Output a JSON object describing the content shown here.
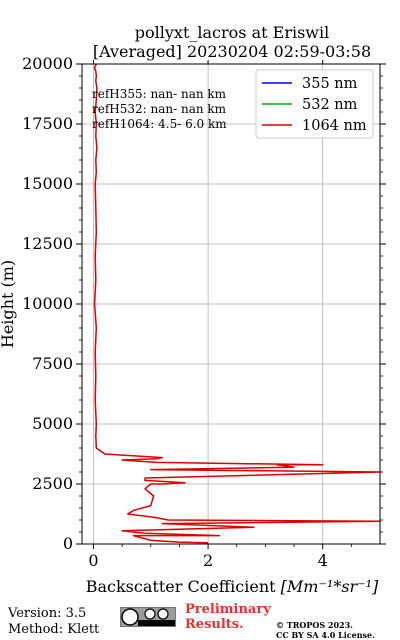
{
  "chart_data": {
    "type": "line",
    "title": "pollyxt_lacros at Eriswil",
    "subtitle": "[Averaged] 20230204 02:59-03:58",
    "xlabel": "Backscatter Coefficient",
    "xlabel_unit": "[Mm⁻¹*sr⁻¹]",
    "ylabel": "Height (m)",
    "xlim": [
      -0.2,
      5
    ],
    "ylim": [
      0,
      20000
    ],
    "xticks": [
      0,
      2,
      4
    ],
    "yticks": [
      0,
      2500,
      5000,
      7500,
      10000,
      12500,
      15000,
      17500,
      20000
    ],
    "grid": true,
    "legend_position": "top-right",
    "annotations": [
      "refH355:  nan- nan km",
      "refH532:  nan- nan km",
      "refH1064:  4.5- 6.0 km"
    ],
    "series": [
      {
        "name": "355 nm",
        "color": "#0000ff",
        "x": [],
        "y": []
      },
      {
        "name": "532 nm",
        "color": "#00aa00",
        "x": [],
        "y": []
      },
      {
        "name": "1064 nm",
        "color": "#dd0000",
        "x": [
          2.0,
          1.5,
          1.0,
          0.7,
          2.2,
          0.9,
          0.5,
          2.8,
          1.2,
          5.0,
          1.3,
          1.1,
          0.6,
          0.7,
          1.0,
          1.05,
          0.9,
          1.0,
          1.2,
          1.6,
          0.9,
          0.9,
          5.0,
          1.0,
          3.5,
          3.2,
          4.0,
          1.1,
          0.5,
          1.1,
          1.2,
          0.2,
          0.05,
          0.04,
          0.05,
          0.03,
          0.04,
          0.03,
          0.05,
          0.02,
          0.04,
          0.03,
          0.05,
          0.04,
          0.03,
          0.05,
          0.04,
          0.06,
          0.04,
          0.05,
          0.03,
          0.05,
          0.06,
          0.04,
          0.05,
          0.04,
          0.02,
          0.05
        ],
        "y": [
          50,
          80,
          150,
          350,
          350,
          450,
          550,
          700,
          850,
          950,
          1000,
          1100,
          1250,
          1400,
          1600,
          2000,
          2300,
          2500,
          2500,
          2550,
          2650,
          2750,
          3000,
          3100,
          3200,
          3300,
          3300,
          3400,
          3500,
          3550,
          3600,
          3750,
          4000,
          4500,
          5000,
          6000,
          7000,
          8000,
          9000,
          10000,
          11000,
          12000,
          13000,
          14000,
          15000,
          15500,
          16000,
          16500,
          17000,
          17500,
          18000,
          18500,
          19000,
          19300,
          19500,
          19700,
          19850,
          20000
        ]
      }
    ]
  },
  "footer": {
    "version": "Version: 3.5",
    "method": "Method: Klett",
    "license_badge": "cc-by-sa-badge",
    "prelim_line1": "Preliminary",
    "prelim_line2": "Results.",
    "copyright_line1": "© TROPOS 2023.",
    "copyright_line2": "CC BY SA 4.0 License."
  }
}
